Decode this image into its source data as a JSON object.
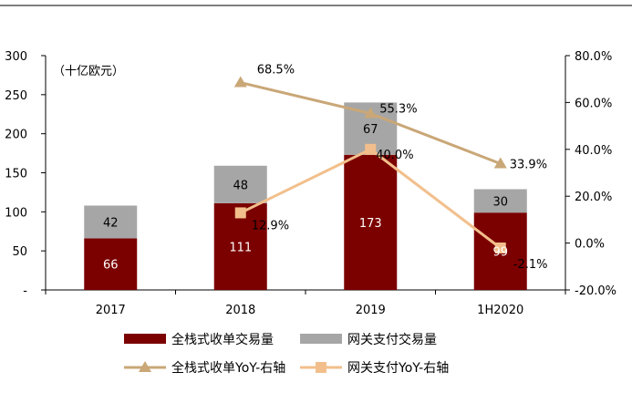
{
  "chart_data": {
    "type": "bar",
    "stacked": true,
    "unit_note": "（十亿欧元）",
    "categories": [
      "2017",
      "2018",
      "2019",
      "1H2020"
    ],
    "left_axis": {
      "min": 0,
      "max": 300,
      "ticks": [
        "-",
        "50",
        "100",
        "150",
        "200",
        "250",
        "300"
      ],
      "tick_values": [
        0,
        50,
        100,
        150,
        200,
        250,
        300
      ]
    },
    "right_axis": {
      "min": -20,
      "max": 80,
      "ticks": [
        "-20.0%",
        "0.0%",
        "20.0%",
        "40.0%",
        "60.0%",
        "80.0%"
      ],
      "tick_values": [
        -20,
        0,
        20,
        40,
        60,
        80
      ]
    },
    "series": [
      {
        "name": "全栈式收单交易量",
        "kind": "bar",
        "color": "#7b0000",
        "values": [
          66,
          111,
          173,
          99
        ],
        "labels": [
          "66",
          "111",
          "173",
          "99"
        ]
      },
      {
        "name": "网关支付交易量",
        "kind": "bar",
        "color": "#a6a6a6",
        "values": [
          42,
          48,
          67,
          30
        ],
        "labels": [
          "42",
          "48",
          "67",
          "30"
        ]
      },
      {
        "name": "全栈式收单YoY-右轴",
        "kind": "line",
        "marker": "triangle",
        "color": "#c9a777",
        "values": [
          null,
          68.5,
          55.3,
          33.9
        ],
        "labels": [
          "",
          "68.5%",
          "55.3%",
          "33.9%"
        ]
      },
      {
        "name": "网关支付YoY-右轴",
        "kind": "line",
        "marker": "square",
        "color": "#f2bf8c",
        "values": [
          null,
          12.9,
          40.0,
          -2.1
        ],
        "labels": [
          "",
          "12.9%",
          "40.0%",
          "-2.1%"
        ]
      }
    ]
  }
}
